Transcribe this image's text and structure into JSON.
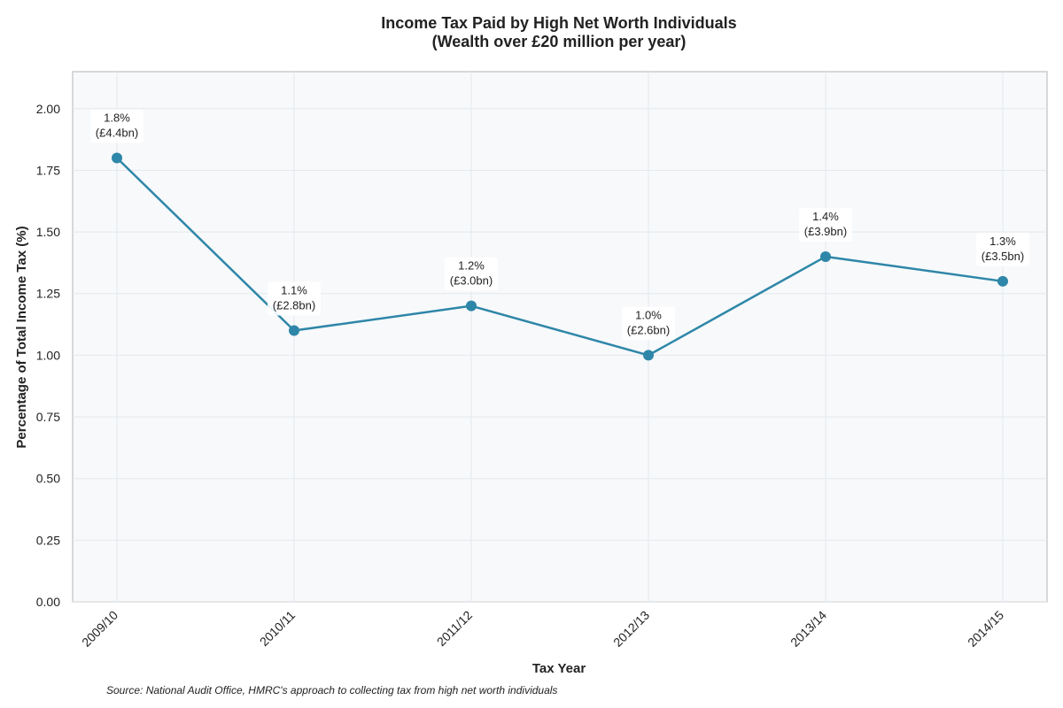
{
  "chart_data": {
    "type": "line",
    "title": "Income Tax Paid by High Net Worth Individuals",
    "subtitle": "(Wealth over £20 million per year)",
    "xlabel": "Tax Year",
    "ylabel": "Percentage of Total Income Tax (%)",
    "categories": [
      "2009/10",
      "2010/11",
      "2011/12",
      "2012/13",
      "2013/14",
      "2014/15"
    ],
    "values": [
      1.8,
      1.1,
      1.2,
      1.0,
      1.4,
      1.3
    ],
    "data_labels": [
      [
        "1.8%",
        "(£4.4bn)"
      ],
      [
        "1.1%",
        "(£2.8bn)"
      ],
      [
        "1.2%",
        "(£3.0bn)"
      ],
      [
        "1.0%",
        "(£2.6bn)"
      ],
      [
        "1.4%",
        "(£3.9bn)"
      ],
      [
        "1.3%",
        "(£3.5bn)"
      ]
    ],
    "ylim": [
      0,
      2.15
    ],
    "yticks": [
      "0.00",
      "0.25",
      "0.50",
      "0.75",
      "1.00",
      "1.25",
      "1.50",
      "1.75",
      "2.00"
    ],
    "grid": true,
    "line_color": "#2e86a8",
    "plot_background": "#f7f9fb",
    "source": "Source: National Audit Office, HMRC's approach to collecting tax from high net worth individuals"
  }
}
